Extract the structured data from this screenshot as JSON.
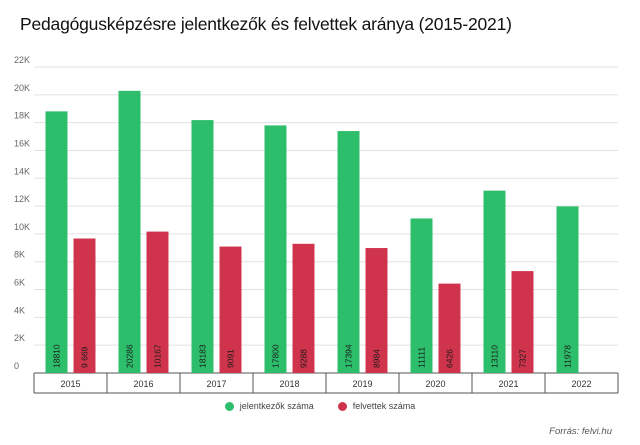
{
  "title": "Pedagógusképzésre jelentkezők és felvettek aránya (2015-2021)",
  "source": "Forrás:  felvi.hu",
  "colors": {
    "applicants": "#2dbe6c",
    "admitted": "#d0344c",
    "grid": "#e2e2e2",
    "axis": "#555555"
  },
  "chart_data": {
    "type": "bar",
    "categories": [
      "2015",
      "2016",
      "2017",
      "2018",
      "2019",
      "2020",
      "2021",
      "2022"
    ],
    "series": [
      {
        "name": "jelentkezők száma",
        "values": [
          18810,
          20286,
          18183,
          17800,
          17394,
          11111,
          13110,
          11978
        ],
        "labels": [
          "18810",
          "20286",
          "18183",
          "17800",
          "17394",
          "11111",
          "13110",
          "11978"
        ]
      },
      {
        "name": "felvettek száma",
        "values": [
          9669,
          10167,
          9091,
          9288,
          8984,
          6426,
          7327,
          null
        ],
        "labels": [
          "9 669",
          "10167",
          "9091",
          "9288",
          "8984",
          "6426",
          "7327",
          ""
        ]
      }
    ],
    "ylim": [
      0,
      22000
    ],
    "yticks": [
      0,
      2000,
      4000,
      6000,
      8000,
      10000,
      12000,
      14000,
      16000,
      18000,
      20000,
      22000
    ],
    "ytick_labels": [
      "0",
      "2K",
      "4K",
      "6K",
      "8K",
      "10K",
      "12K",
      "14K",
      "16K",
      "18K",
      "20K",
      "22K"
    ],
    "grid": true,
    "legend_position": "bottom-center"
  }
}
